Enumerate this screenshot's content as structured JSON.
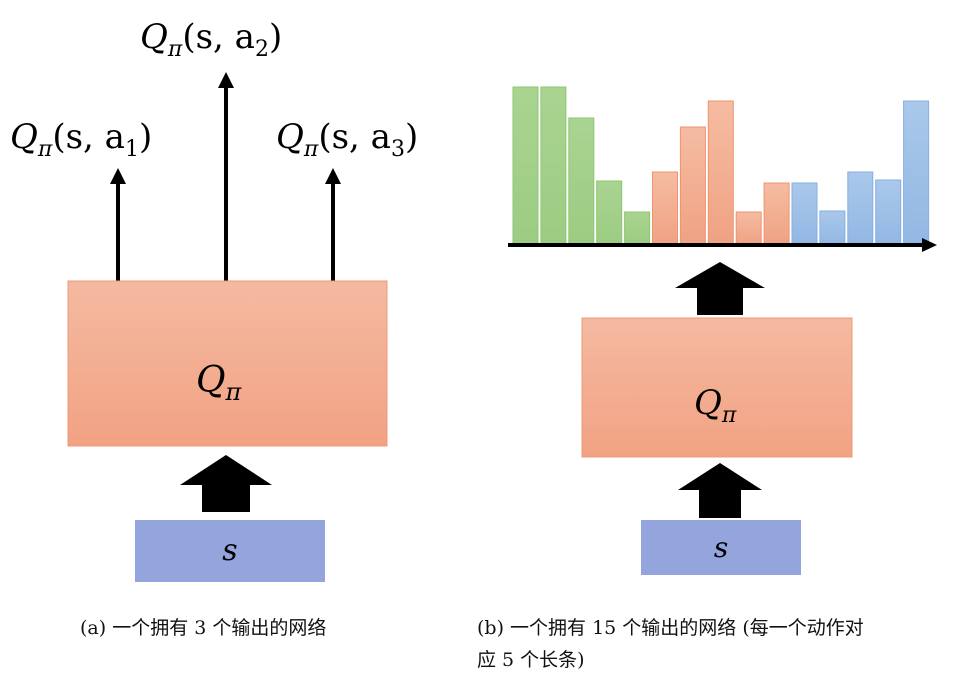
{
  "panel_a": {
    "outputs": [
      {
        "q": "Q",
        "sub": "π",
        "args": "(s, a",
        "idx": "1",
        "close": ")"
      },
      {
        "q": "Q",
        "sub": "π",
        "args": "(s, a",
        "idx": "2",
        "close": ")"
      },
      {
        "q": "Q",
        "sub": "π",
        "args": "(s, a",
        "idx": "3",
        "close": ")"
      }
    ],
    "network_label": {
      "q": "Q",
      "sub": "π"
    },
    "input_label": "s",
    "caption": "(a) 一个拥有 3 个输出的网络"
  },
  "panel_b": {
    "network_label": {
      "q": "Q",
      "sub": "π"
    },
    "input_label": "s",
    "caption_line1": "(b) 一个拥有 15 个输出的网络 (每一个动作对",
    "caption_line2": "应 5 个长条)",
    "bar_heights": [
      157,
      157,
      126,
      63,
      32,
      72,
      117,
      143,
      32,
      61,
      61,
      33,
      72,
      64,
      143
    ],
    "bar_groups": [
      "green",
      "green",
      "green",
      "green",
      "green",
      "orange",
      "orange",
      "orange",
      "orange",
      "orange",
      "blue",
      "blue",
      "blue",
      "blue",
      "blue"
    ]
  },
  "colors": {
    "green": "#a6d28d",
    "orange": "#f2a98a",
    "blue": "#9fc0e6",
    "network_box": "#f3ac90",
    "input_box": "#94a4dc"
  }
}
